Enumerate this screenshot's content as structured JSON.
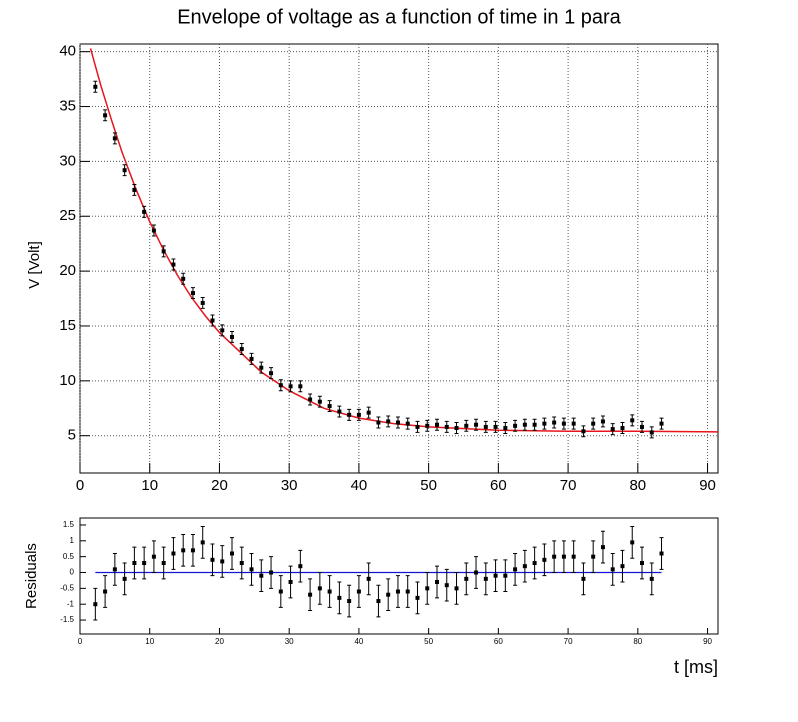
{
  "chart_data": [
    {
      "type": "scatter",
      "title": "Envelope of voltage as a function of time in 1 para",
      "ylabel": "V [Volt]",
      "x": [
        2.2,
        3.6,
        5,
        6.4,
        7.8,
        9.2,
        10.6,
        12,
        13.4,
        14.8,
        16.2,
        17.6,
        19,
        20.4,
        21.8,
        23.2,
        24.6,
        26,
        27.4,
        28.8,
        30.2,
        31.6,
        33,
        34.4,
        35.8,
        37.2,
        38.6,
        40,
        41.4,
        42.8,
        44.2,
        45.6,
        47,
        48.4,
        49.8,
        51.2,
        52.6,
        54,
        55.4,
        56.8,
        58.2,
        59.6,
        61,
        62.4,
        63.8,
        65.2,
        66.6,
        68,
        69.4,
        70.8,
        72.2,
        73.6,
        75,
        76.4,
        77.8,
        79.2,
        80.6,
        82,
        83.4
      ],
      "values": [
        36.8,
        34.2,
        32.1,
        29.2,
        27.4,
        25.4,
        23.7,
        21.8,
        20.6,
        19.3,
        18.0,
        17.1,
        15.5,
        14.6,
        14.0,
        12.9,
        12.0,
        11.2,
        10.7,
        9.6,
        9.5,
        9.5,
        8.3,
        8.1,
        7.7,
        7.2,
        6.9,
        6.9,
        7.1,
        6.2,
        6.3,
        6.2,
        6.1,
        5.8,
        5.9,
        6.0,
        5.8,
        5.7,
        5.9,
        6.0,
        5.8,
        5.8,
        5.7,
        5.9,
        6.0,
        6.0,
        6.1,
        6.2,
        6.1,
        6.1,
        5.4,
        6.1,
        6.3,
        5.6,
        5.7,
        6.4,
        5.8,
        5.3,
        6.1
      ],
      "yerr": 0.5,
      "color": "#000000",
      "fit": {
        "x": [
          1.5,
          3,
          4.5,
          6,
          8,
          10,
          12,
          14,
          16,
          18,
          20,
          23,
          26,
          30,
          35,
          40,
          45,
          50,
          60,
          70,
          80,
          91.5
        ],
        "values": [
          40.3,
          36.9,
          33.8,
          30.9,
          27.5,
          24.5,
          21.9,
          19.6,
          17.6,
          15.9,
          14.4,
          12.6,
          10.8,
          9.1,
          7.5,
          6.6,
          6.1,
          5.8,
          5.5,
          5.4,
          5.4,
          5.35
        ],
        "color": "#e8141c"
      },
      "xlim": [
        0,
        91.5
      ],
      "ylim": [
        1.6,
        40.7
      ],
      "xticks": [
        0,
        10,
        20,
        30,
        40,
        50,
        60,
        70,
        80,
        90
      ],
      "yticks": [
        5,
        10,
        15,
        20,
        25,
        30,
        35,
        40
      ],
      "grid": true
    },
    {
      "type": "scatter",
      "ylabel": "Residuals",
      "xlabel": "t [ms]",
      "x": [
        2.2,
        3.6,
        5,
        6.4,
        7.8,
        9.2,
        10.6,
        12,
        13.4,
        14.8,
        16.2,
        17.6,
        19,
        20.4,
        21.8,
        23.2,
        24.6,
        26,
        27.4,
        28.8,
        30.2,
        31.6,
        33,
        34.4,
        35.8,
        37.2,
        38.6,
        40,
        41.4,
        42.8,
        44.2,
        45.6,
        47,
        48.4,
        49.8,
        51.2,
        52.6,
        54,
        55.4,
        56.8,
        58.2,
        59.6,
        61,
        62.4,
        63.8,
        65.2,
        66.6,
        68,
        69.4,
        70.8,
        72.2,
        73.6,
        75,
        76.4,
        77.8,
        79.2,
        80.6,
        82,
        83.4
      ],
      "values": [
        -1.0,
        -0.6,
        0.1,
        -0.2,
        0.3,
        0.3,
        0.5,
        0.3,
        0.6,
        0.7,
        0.7,
        0.95,
        0.4,
        0.35,
        0.6,
        0.3,
        0.1,
        -0.1,
        0.0,
        -0.6,
        -0.3,
        0.2,
        -0.7,
        -0.5,
        -0.6,
        -0.8,
        -0.9,
        -0.6,
        -0.2,
        -0.9,
        -0.7,
        -0.6,
        -0.6,
        -0.8,
        -0.5,
        -0.3,
        -0.4,
        -0.5,
        -0.2,
        0.0,
        -0.2,
        -0.1,
        -0.1,
        0.1,
        0.2,
        0.3,
        0.4,
        0.5,
        0.5,
        0.5,
        -0.2,
        0.5,
        0.8,
        0.1,
        0.2,
        0.95,
        0.3,
        -0.2,
        0.6
      ],
      "yerr": 0.5,
      "color": "#000000",
      "line_color": "#1414d2",
      "xlim": [
        0,
        91.5
      ],
      "ylim": [
        -1.94,
        1.72
      ],
      "xticks": [
        0,
        10,
        20,
        30,
        40,
        50,
        60,
        70,
        80,
        90
      ],
      "yticks": [
        -1.5,
        -1,
        -0.5,
        0,
        0.5,
        1,
        1.5
      ],
      "grid": false
    }
  ]
}
